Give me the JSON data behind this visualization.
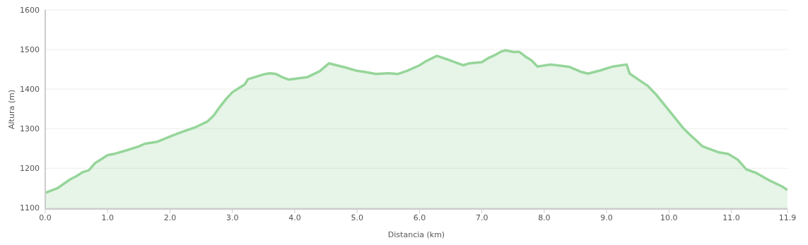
{
  "chart_data": {
    "type": "area",
    "xlabel": "Distancia (km)",
    "ylabel": "Altura (m)",
    "x": [
      0,
      0.2,
      0.4,
      0.5,
      0.6,
      0.7,
      0.8,
      1.0,
      1.1,
      1.3,
      1.5,
      1.6,
      1.8,
      2.0,
      2.2,
      2.4,
      2.6,
      2.7,
      2.8,
      2.9,
      3.0,
      3.1,
      3.2,
      3.25,
      3.4,
      3.5,
      3.6,
      3.7,
      3.8,
      3.9,
      4.2,
      4.4,
      4.55,
      4.8,
      5.0,
      5.1,
      5.3,
      5.5,
      5.65,
      5.8,
      6.0,
      6.1,
      6.28,
      6.5,
      6.7,
      6.8,
      7.0,
      7.1,
      7.2,
      7.3,
      7.38,
      7.5,
      7.6,
      7.7,
      7.8,
      7.89,
      8.1,
      8.3,
      8.4,
      8.6,
      8.7,
      8.9,
      9.1,
      9.32,
      9.37,
      9.5,
      9.66,
      9.8,
      10.02,
      10.23,
      10.3,
      10.54,
      10.8,
      10.95,
      11.1,
      11.24,
      11.4,
      11.6,
      11.8,
      11.9
    ],
    "series": [
      {
        "color": "#96d59a",
        "values": [
          1138,
          1150,
          1172,
          1180,
          1190,
          1195,
          1213,
          1233,
          1236,
          1245,
          1255,
          1262,
          1267,
          1280,
          1292,
          1303,
          1318,
          1333,
          1355,
          1375,
          1392,
          1402,
          1412,
          1425,
          1432,
          1437,
          1440,
          1438,
          1430,
          1424,
          1430,
          1445,
          1465,
          1455,
          1446,
          1444,
          1438,
          1440,
          1438,
          1446,
          1460,
          1470,
          1484,
          1472,
          1460,
          1465,
          1468,
          1478,
          1485,
          1494,
          1498,
          1494,
          1494,
          1482,
          1472,
          1457,
          1462,
          1458,
          1456,
          1443,
          1439,
          1447,
          1457,
          1462,
          1439,
          1425,
          1408,
          1385,
          1342,
          1301,
          1290,
          1255,
          1240,
          1236,
          1222,
          1197,
          1188,
          1170,
          1155,
          1145
        ]
      }
    ],
    "xlim": [
      0,
      11.9
    ],
    "xticks": [
      {
        "value": 0,
        "label": "0.0"
      },
      {
        "value": 1,
        "label": "1.0"
      },
      {
        "value": 2,
        "label": "2.0"
      },
      {
        "value": 3,
        "label": "3.0"
      },
      {
        "value": 4,
        "label": "4.0"
      },
      {
        "value": 5,
        "label": "5.0"
      },
      {
        "value": 6,
        "label": "6.0"
      },
      {
        "value": 7,
        "label": "7.0"
      },
      {
        "value": 8,
        "label": "8.0"
      },
      {
        "value": 9,
        "label": "9.0"
      },
      {
        "value": 10,
        "label": "10.0"
      },
      {
        "value": 11,
        "label": "11.0"
      },
      {
        "value": 11.9,
        "label": "11.9"
      }
    ],
    "ylim": [
      1097,
      1600
    ],
    "yticks": [
      1100,
      1200,
      1300,
      1400,
      1500,
      1600
    ],
    "grid": "y"
  }
}
